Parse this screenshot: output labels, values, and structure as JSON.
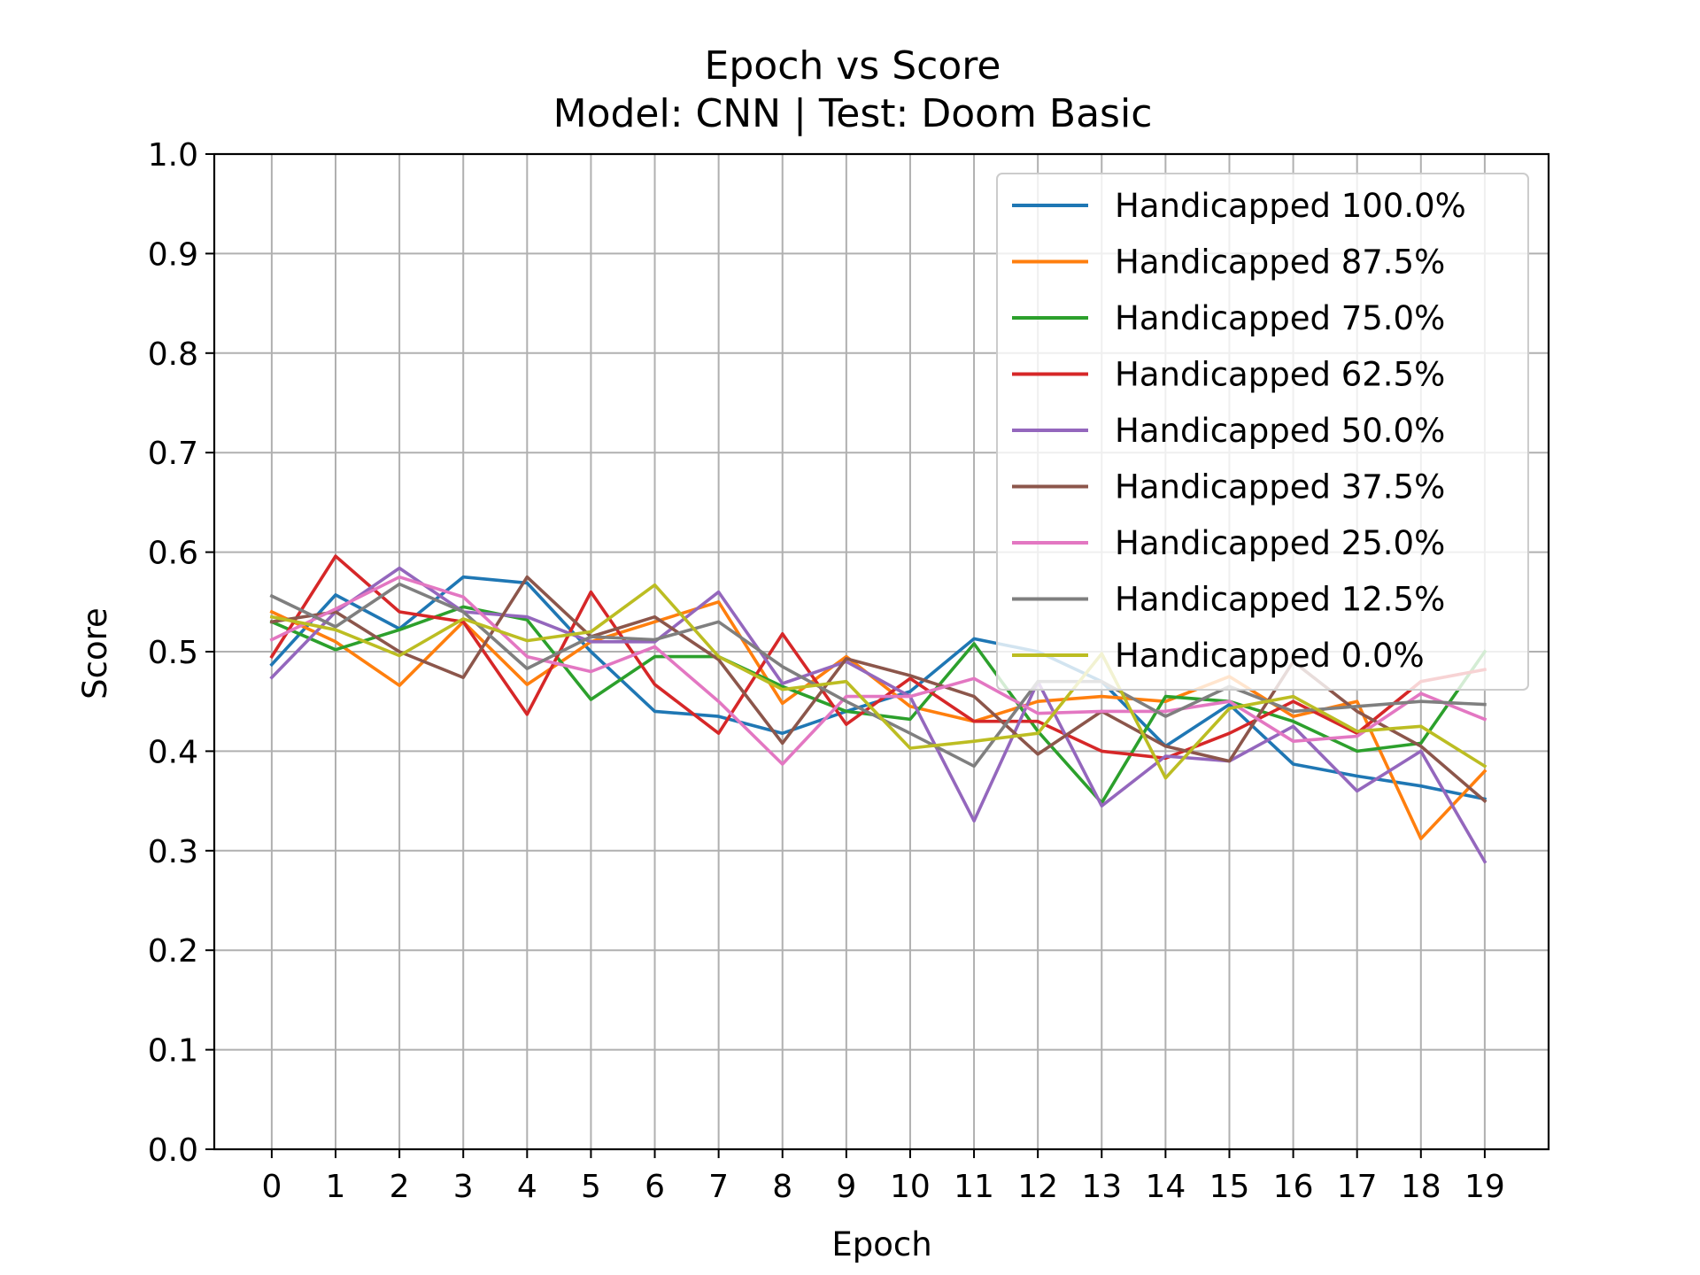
{
  "chart_data": {
    "type": "line",
    "title": "Epoch vs Score",
    "subtitle": "Model: CNN | Test: Doom Basic",
    "xlabel": "Epoch",
    "ylabel": "Score",
    "ylim": [
      0.0,
      1.0
    ],
    "xlim": [
      -0.9,
      20.0
    ],
    "grid": true,
    "legend_position": "top-right",
    "x": [
      0,
      1,
      2,
      3,
      4,
      5,
      6,
      7,
      8,
      9,
      10,
      11,
      12,
      13,
      14,
      15,
      16,
      17,
      18,
      19
    ],
    "x_tick_labels": [
      "0",
      "1",
      "2",
      "3",
      "4",
      "5",
      "6",
      "7",
      "8",
      "9",
      "10",
      "11",
      "12",
      "13",
      "14",
      "15",
      "16",
      "17",
      "18",
      "19"
    ],
    "y_ticks": [
      0.0,
      0.1,
      0.2,
      0.3,
      0.4,
      0.5,
      0.6,
      0.7,
      0.8,
      0.9,
      1.0
    ],
    "y_tick_labels": [
      "0.0",
      "0.1",
      "0.2",
      "0.3",
      "0.4",
      "0.5",
      "0.6",
      "0.7",
      "0.8",
      "0.9",
      "1.0"
    ],
    "series": [
      {
        "name": "Handicapped 100.0%",
        "color": "#1f77b4",
        "values": [
          0.487,
          0.557,
          0.523,
          0.575,
          0.569,
          0.5,
          0.44,
          0.435,
          0.418,
          0.44,
          0.46,
          0.513,
          0.5,
          0.47,
          0.405,
          0.447,
          0.387,
          0.375,
          0.365,
          0.352
        ]
      },
      {
        "name": "Handicapped 87.5%",
        "color": "#ff7f0e",
        "values": [
          0.54,
          0.51,
          0.466,
          0.53,
          0.467,
          0.51,
          0.53,
          0.55,
          0.448,
          0.495,
          0.445,
          0.43,
          0.45,
          0.455,
          0.45,
          0.475,
          0.435,
          0.45,
          0.312,
          0.38
        ]
      },
      {
        "name": "Handicapped 75.0%",
        "color": "#2ca02c",
        "values": [
          0.53,
          0.502,
          0.522,
          0.545,
          0.532,
          0.452,
          0.495,
          0.495,
          0.465,
          0.44,
          0.432,
          0.508,
          0.42,
          0.348,
          0.455,
          0.45,
          0.43,
          0.4,
          0.408,
          0.5
        ]
      },
      {
        "name": "Handicapped 62.5%",
        "color": "#d62728",
        "values": [
          0.495,
          0.596,
          0.54,
          0.53,
          0.437,
          0.56,
          0.467,
          0.418,
          0.518,
          0.427,
          0.473,
          0.43,
          0.43,
          0.4,
          0.393,
          0.418,
          0.45,
          0.418,
          0.47,
          0.482
        ]
      },
      {
        "name": "Handicapped 50.0%",
        "color": "#9467bd",
        "values": [
          0.474,
          0.54,
          0.584,
          0.54,
          0.535,
          0.51,
          0.51,
          0.56,
          0.468,
          0.49,
          0.455,
          0.33,
          0.47,
          0.345,
          0.395,
          0.39,
          0.425,
          0.36,
          0.4,
          0.289
        ]
      },
      {
        "name": "Handicapped 37.5%",
        "color": "#8c564b",
        "values": [
          0.53,
          0.54,
          0.5,
          0.474,
          0.575,
          0.515,
          0.535,
          0.492,
          0.408,
          0.493,
          0.476,
          0.455,
          0.397,
          0.44,
          0.405,
          0.39,
          0.49,
          0.44,
          0.405,
          0.35
        ]
      },
      {
        "name": "Handicapped 25.0%",
        "color": "#e377c2",
        "values": [
          0.512,
          0.543,
          0.575,
          0.555,
          0.495,
          0.48,
          0.505,
          0.45,
          0.387,
          0.455,
          0.455,
          0.473,
          0.438,
          0.44,
          0.44,
          0.45,
          0.41,
          0.415,
          0.458,
          0.432
        ]
      },
      {
        "name": "Handicapped 12.5%",
        "color": "#7f7f7f",
        "values": [
          0.556,
          0.525,
          0.568,
          0.54,
          0.483,
          0.515,
          0.512,
          0.53,
          0.485,
          0.45,
          0.418,
          0.385,
          0.47,
          0.47,
          0.435,
          0.465,
          0.44,
          0.445,
          0.45,
          0.447
        ]
      },
      {
        "name": "Handicapped 0.0%",
        "color": "#bcbd22",
        "values": [
          0.535,
          0.522,
          0.496,
          0.533,
          0.511,
          0.52,
          0.567,
          0.495,
          0.462,
          0.47,
          0.403,
          0.41,
          0.418,
          0.498,
          0.373,
          0.443,
          0.455,
          0.42,
          0.425,
          0.385
        ]
      }
    ]
  }
}
